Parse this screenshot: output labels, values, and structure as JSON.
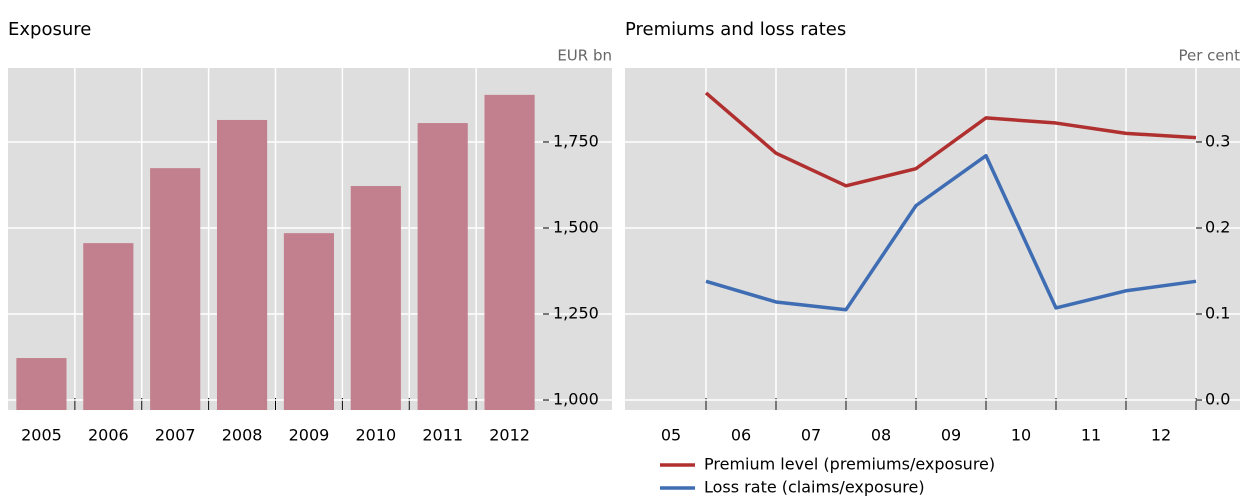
{
  "chart_data": [
    {
      "type": "bar",
      "title": "Exposure",
      "unit": "EUR bn",
      "categories": [
        "2005",
        "2006",
        "2007",
        "2008",
        "2009",
        "2010",
        "2011",
        "2012"
      ],
      "values": [
        1122,
        1456,
        1674,
        1814,
        1485,
        1622,
        1805,
        1887
      ],
      "color": "#c2808e",
      "ylim": [
        971,
        1965
      ],
      "yticks": [
        {
          "value": 1000,
          "label": "1,000"
        },
        {
          "value": 1250,
          "label": "1,250"
        },
        {
          "value": 1500,
          "label": "1,500"
        },
        {
          "value": 1750,
          "label": "1,750"
        }
      ],
      "grid": true
    },
    {
      "type": "line",
      "title": "Premiums and loss rates",
      "unit": "Per cent",
      "categories": [
        "05",
        "06",
        "07",
        "08",
        "09",
        "10",
        "11",
        "12"
      ],
      "series": [
        {
          "name": "Premium level (premiums/exposure)",
          "color": "#b03030",
          "values": [
            0.357,
            0.287,
            0.249,
            0.269,
            0.328,
            0.322,
            0.31,
            0.305
          ]
        },
        {
          "name": "Loss rate (claims/exposure)",
          "color": "#3f6db3",
          "values": [
            0.138,
            0.114,
            0.105,
            0.226,
            0.284,
            0.107,
            0.127,
            0.138
          ]
        }
      ],
      "ylim": [
        -0.0116,
        0.386
      ],
      "yticks": [
        {
          "value": 0,
          "label": "0.0"
        },
        0.1,
        0.2,
        0.3
      ],
      "grid": true
    }
  ]
}
